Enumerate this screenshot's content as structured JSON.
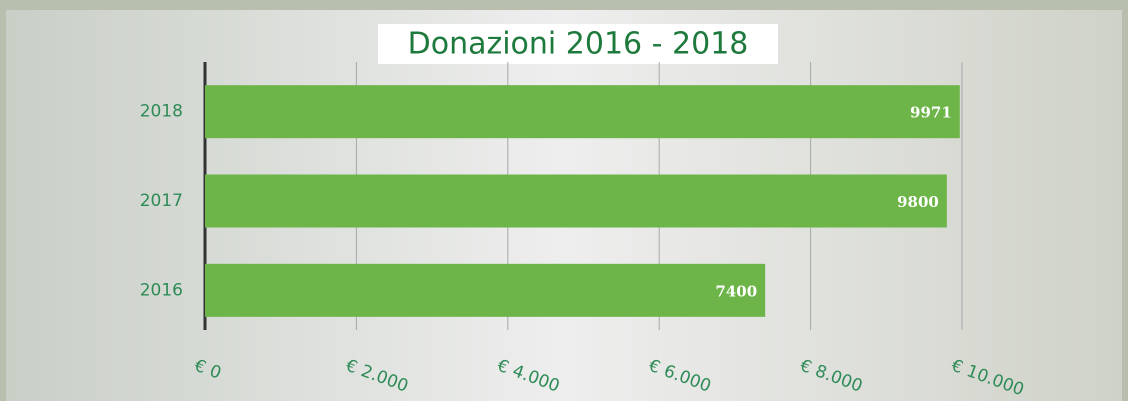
{
  "chart_data": {
    "type": "bar",
    "orientation": "horizontal",
    "title": "Donazioni 2016 - 2018",
    "categories": [
      "2018",
      "2017",
      "2016"
    ],
    "values": [
      9971,
      9800,
      7400
    ],
    "color": "#6db548",
    "xlim": [
      0,
      10000
    ],
    "xticks": [
      {
        "value": 0,
        "label": "€ 0"
      },
      {
        "value": 2000,
        "label": "€ 2.000"
      },
      {
        "value": 4000,
        "label": "€ 4.000"
      },
      {
        "value": 6000,
        "label": "€ 6.000"
      },
      {
        "value": 8000,
        "label": "€ 8.000"
      },
      {
        "value": 10000,
        "label": "€ 10.000"
      }
    ],
    "grid": true
  }
}
